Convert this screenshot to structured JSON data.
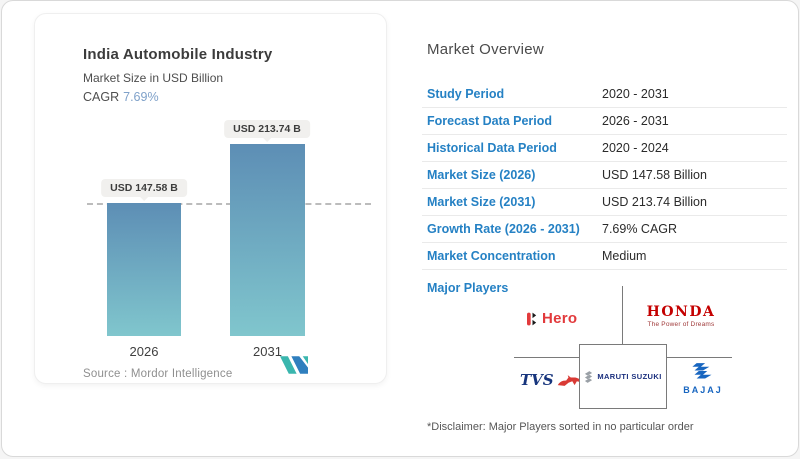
{
  "chart_card": {
    "title": "India Automobile Industry",
    "subtitle": "Market Size in USD Billion",
    "cagr_label": "CAGR",
    "cagr_value": "7.69%",
    "source_line": "Source :  Mordor Intelligence"
  },
  "chart_data": {
    "type": "bar",
    "title": "India Automobile Industry",
    "ylabel": "Market Size in USD Billion",
    "categories": [
      "2026",
      "2031"
    ],
    "values": [
      147.58,
      213.74
    ],
    "bar_labels": [
      "USD 147.58 B",
      "USD 213.74 B"
    ],
    "cagr": "7.69%",
    "bar_gradient_top": "#5d8eb5",
    "bar_gradient_bottom": "#80c6cd",
    "reference_line": "dashed-at-2026-level",
    "grid": false,
    "legend": false
  },
  "overview": {
    "heading": "Market Overview",
    "rows": [
      {
        "label": "Study Period",
        "value": "2020 - 2031"
      },
      {
        "label": "Forecast Data Period",
        "value": "2026 - 2031"
      },
      {
        "label": "Historical Data Period",
        "value": "2020 - 2024"
      },
      {
        "label": "Market Size (2026)",
        "value": "USD 147.58 Billion"
      },
      {
        "label": "Market Size (2031)",
        "value": "USD 213.74 Billion"
      },
      {
        "label": "Growth Rate (2026 - 2031)",
        "value": "7.69% CAGR"
      },
      {
        "label": "Market Concentration",
        "value": "Medium"
      }
    ],
    "major_players_label": "Major Players",
    "players": {
      "hero": {
        "name": "Hero"
      },
      "honda": {
        "name": "HONDA",
        "tagline": "The Power of Dreams"
      },
      "tvs": {
        "name": "TVS"
      },
      "maruti": {
        "name": "MARUTI SUZUKI"
      },
      "bajaj": {
        "name": "BAJAJ"
      }
    },
    "label_color": "#2581c4"
  },
  "page": {
    "disclaimer": "*Disclaimer: Major Players sorted in no particular order"
  }
}
